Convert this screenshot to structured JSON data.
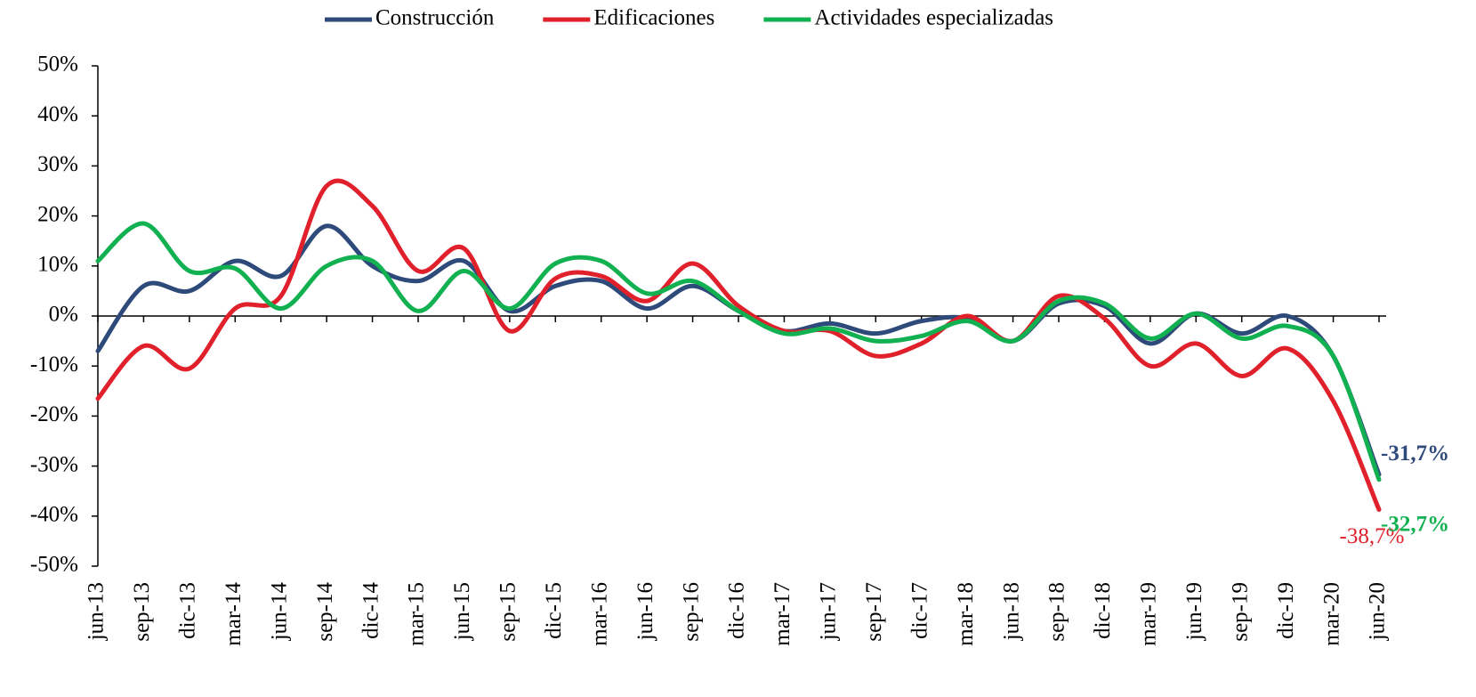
{
  "chart_data": {
    "type": "line",
    "categories": [
      "jun-13",
      "sep-13",
      "dic-13",
      "mar-14",
      "jun-14",
      "sep-14",
      "dic-14",
      "mar-15",
      "jun-15",
      "sep-15",
      "dic-15",
      "mar-16",
      "jun-16",
      "sep-16",
      "dic-16",
      "mar-17",
      "jun-17",
      "sep-17",
      "dic-17",
      "mar-18",
      "jun-18",
      "sep-18",
      "dic-18",
      "mar-19",
      "jun-19",
      "sep-19",
      "dic-19",
      "mar-20",
      "jun-20"
    ],
    "series": [
      {
        "name": "Construcción",
        "color": "#2e4a7a",
        "values": [
          -7,
          6,
          5,
          11,
          8,
          18,
          10,
          7,
          11,
          1,
          6,
          7,
          1.5,
          6,
          1,
          -3,
          -1.5,
          -3.5,
          -1,
          -0.5,
          -5,
          2.5,
          2,
          -5.5,
          0.5,
          -3.5,
          0,
          -8,
          -31.7
        ],
        "value_labels": [
          null,
          null,
          null,
          null,
          null,
          null,
          null,
          null,
          null,
          null,
          null,
          null,
          null,
          null,
          null,
          null,
          null,
          null,
          null,
          null,
          null,
          null,
          null,
          null,
          null,
          null,
          null,
          null,
          "-31,7%"
        ]
      },
      {
        "name": "Edificaciones",
        "color": "#e0202a",
        "values": [
          -16.5,
          -6,
          -10.5,
          1.5,
          4,
          26,
          22,
          9,
          13.5,
          -3,
          7.5,
          8,
          3,
          10.5,
          2,
          -3,
          -3,
          -8,
          -5.5,
          0,
          -5,
          4,
          -0.5,
          -10,
          -5.5,
          -12,
          -6.5,
          -17,
          -38.7
        ],
        "value_labels": [
          null,
          null,
          null,
          null,
          null,
          null,
          null,
          null,
          null,
          null,
          null,
          null,
          null,
          null,
          null,
          null,
          null,
          null,
          null,
          null,
          null,
          null,
          null,
          null,
          null,
          null,
          null,
          null,
          "-38,7%"
        ]
      },
      {
        "name": "Actividades especializadas",
        "color": "#11b050",
        "values": [
          11,
          18.5,
          9,
          9.5,
          1.5,
          10,
          11,
          1,
          9,
          1.5,
          10.5,
          11,
          4.5,
          7,
          1,
          -3.5,
          -2.5,
          -5,
          -4,
          -1,
          -5,
          3,
          2.5,
          -4.5,
          0.5,
          -4.5,
          -2,
          -8,
          -32.7
        ],
        "value_labels": [
          null,
          null,
          null,
          null,
          null,
          null,
          null,
          null,
          null,
          null,
          null,
          null,
          null,
          null,
          null,
          null,
          null,
          null,
          null,
          null,
          null,
          null,
          null,
          null,
          null,
          null,
          null,
          null,
          "-32,7%"
        ]
      }
    ],
    "ylim": [
      -50,
      50
    ],
    "yticks": [
      {
        "value": -50,
        "label": "-50%"
      },
      {
        "value": -40,
        "label": "-40%"
      },
      {
        "value": -30,
        "label": "-30%"
      },
      {
        "value": -20,
        "label": "-20%"
      },
      {
        "value": -10,
        "label": "-10%"
      },
      {
        "value": 0,
        "label": "0%"
      },
      {
        "value": 10,
        "label": "10%"
      },
      {
        "value": 20,
        "label": "20%"
      },
      {
        "value": 30,
        "label": "30%"
      },
      {
        "value": 40,
        "label": "40%"
      },
      {
        "value": 50,
        "label": "50%"
      }
    ],
    "grid": false,
    "legend": "top"
  }
}
